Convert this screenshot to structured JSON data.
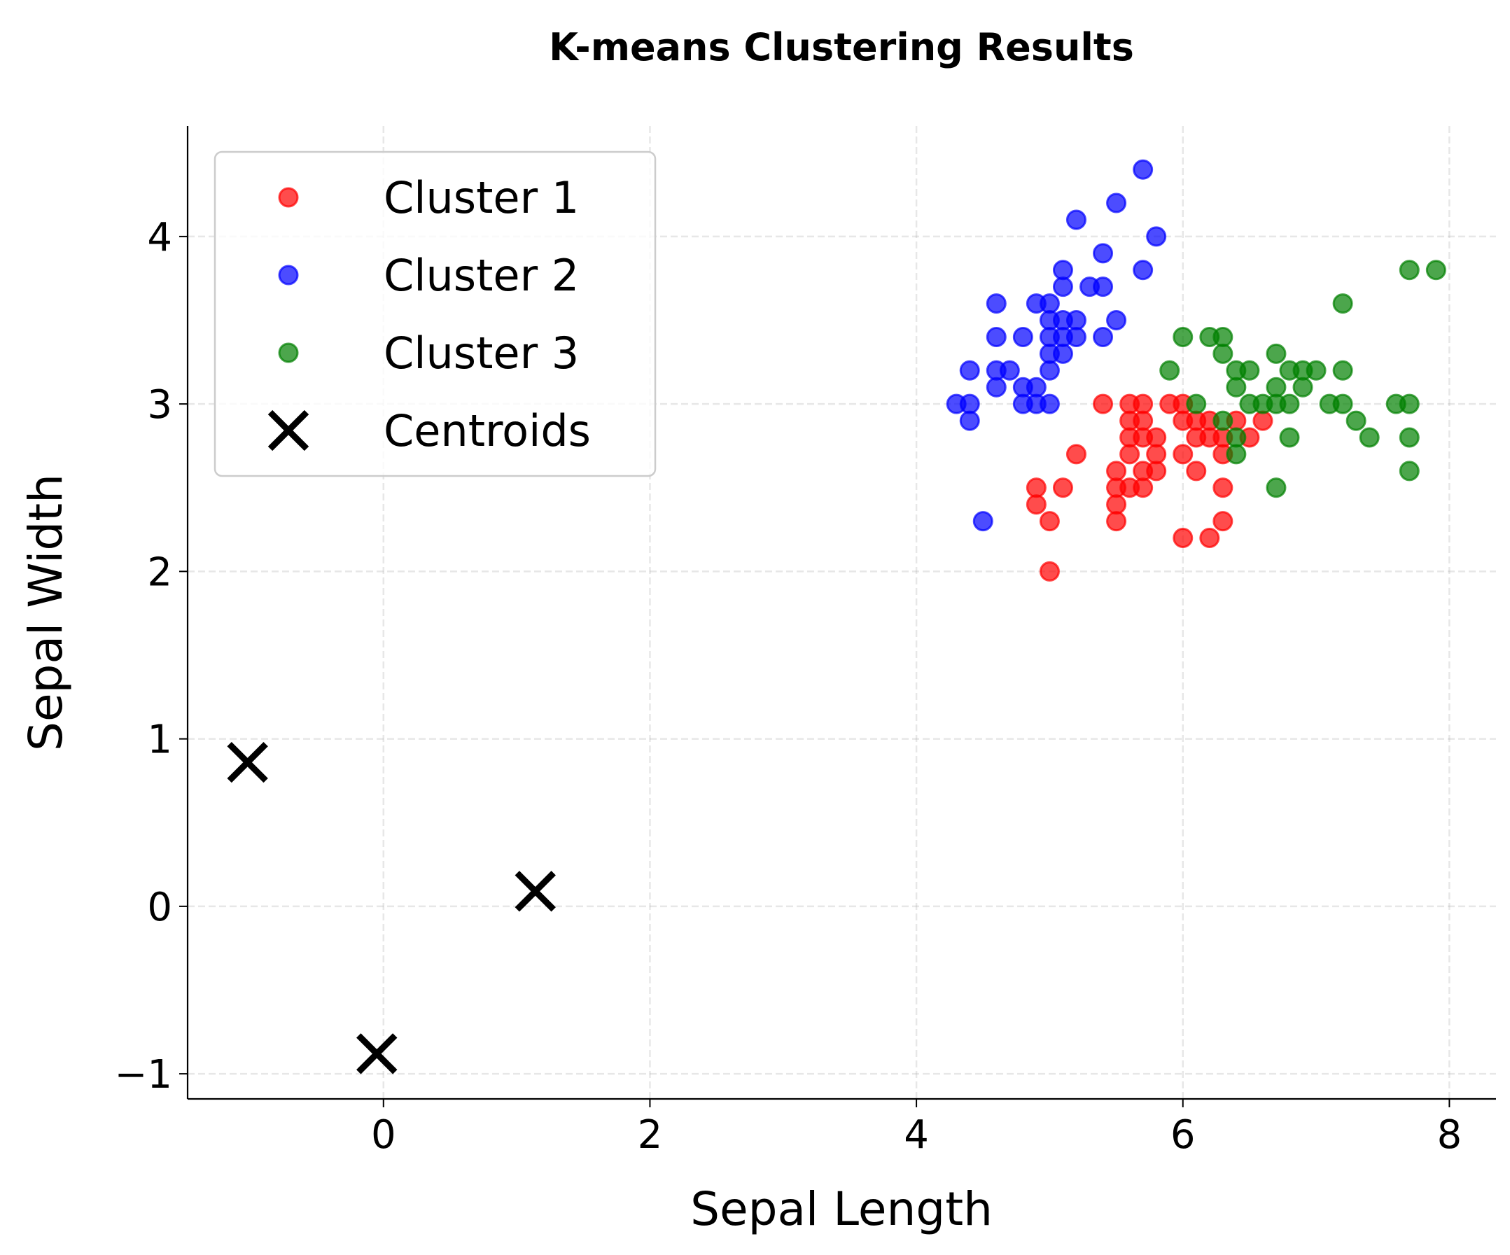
{
  "chart_data": {
    "type": "scatter",
    "title": "K-means Clustering Results",
    "xlabel": "Sepal Length",
    "ylabel": "Sepal Width",
    "xlim": [
      -1.47,
      8.35
    ],
    "ylim": [
      -1.15,
      4.66
    ],
    "xticks": [
      0,
      2,
      4,
      6,
      8
    ],
    "xtick_labels": [
      "0",
      "2",
      "4",
      "6",
      "8"
    ],
    "yticks": [
      -1,
      0,
      1,
      2,
      3,
      4
    ],
    "ytick_labels": [
      "−1",
      "0",
      "1",
      "2",
      "3",
      "4"
    ],
    "grid": true,
    "legend_placement": "top-left",
    "series": [
      {
        "name": "Cluster 1",
        "color": "#ff0000",
        "marker": "circle",
        "points": [
          [
            5.4,
            3.0
          ],
          [
            5.6,
            3.0
          ],
          [
            5.7,
            3.0
          ],
          [
            5.9,
            3.0
          ],
          [
            6.0,
            3.0
          ],
          [
            5.6,
            2.9
          ],
          [
            5.7,
            2.9
          ],
          [
            6.0,
            2.9
          ],
          [
            6.1,
            2.9
          ],
          [
            6.2,
            2.9
          ],
          [
            6.4,
            2.9
          ],
          [
            6.6,
            2.9
          ],
          [
            5.6,
            2.8
          ],
          [
            5.7,
            2.8
          ],
          [
            5.8,
            2.8
          ],
          [
            6.1,
            2.8
          ],
          [
            6.2,
            2.8
          ],
          [
            6.3,
            2.8
          ],
          [
            6.5,
            2.8
          ],
          [
            5.2,
            2.7
          ],
          [
            5.6,
            2.7
          ],
          [
            5.8,
            2.7
          ],
          [
            6.0,
            2.7
          ],
          [
            6.3,
            2.7
          ],
          [
            5.5,
            2.6
          ],
          [
            5.7,
            2.6
          ],
          [
            5.8,
            2.6
          ],
          [
            6.1,
            2.6
          ],
          [
            4.9,
            2.5
          ],
          [
            5.1,
            2.5
          ],
          [
            5.5,
            2.5
          ],
          [
            5.6,
            2.5
          ],
          [
            5.7,
            2.5
          ],
          [
            6.3,
            2.5
          ],
          [
            4.9,
            2.4
          ],
          [
            5.5,
            2.4
          ],
          [
            5.0,
            2.3
          ],
          [
            5.5,
            2.3
          ],
          [
            6.3,
            2.3
          ],
          [
            6.0,
            2.2
          ],
          [
            6.2,
            2.2
          ],
          [
            5.0,
            2.0
          ]
        ]
      },
      {
        "name": "Cluster 2",
        "color": "#0000ff",
        "marker": "circle",
        "points": [
          [
            5.7,
            4.4
          ],
          [
            5.5,
            4.2
          ],
          [
            5.2,
            4.1
          ],
          [
            5.8,
            4.0
          ],
          [
            5.4,
            3.9
          ],
          [
            5.1,
            3.8
          ],
          [
            5.7,
            3.8
          ],
          [
            5.1,
            3.7
          ],
          [
            5.3,
            3.7
          ],
          [
            5.4,
            3.7
          ],
          [
            4.6,
            3.6
          ],
          [
            4.9,
            3.6
          ],
          [
            5.0,
            3.6
          ],
          [
            5.0,
            3.5
          ],
          [
            5.1,
            3.5
          ],
          [
            5.2,
            3.5
          ],
          [
            5.5,
            3.5
          ],
          [
            4.6,
            3.4
          ],
          [
            4.8,
            3.4
          ],
          [
            5.0,
            3.4
          ],
          [
            5.1,
            3.4
          ],
          [
            5.2,
            3.4
          ],
          [
            5.4,
            3.4
          ],
          [
            5.0,
            3.3
          ],
          [
            5.1,
            3.3
          ],
          [
            4.4,
            3.2
          ],
          [
            4.6,
            3.2
          ],
          [
            4.7,
            3.2
          ],
          [
            5.0,
            3.2
          ],
          [
            4.6,
            3.1
          ],
          [
            4.8,
            3.1
          ],
          [
            4.9,
            3.1
          ],
          [
            4.3,
            3.0
          ],
          [
            4.4,
            3.0
          ],
          [
            4.8,
            3.0
          ],
          [
            4.9,
            3.0
          ],
          [
            5.0,
            3.0
          ],
          [
            4.4,
            2.9
          ],
          [
            4.5,
            2.3
          ]
        ]
      },
      {
        "name": "Cluster 3",
        "color": "#008000",
        "marker": "circle",
        "points": [
          [
            7.7,
            3.8
          ],
          [
            7.9,
            3.8
          ],
          [
            7.2,
            3.6
          ],
          [
            6.0,
            3.4
          ],
          [
            6.2,
            3.4
          ],
          [
            6.3,
            3.4
          ],
          [
            6.3,
            3.3
          ],
          [
            6.7,
            3.3
          ],
          [
            5.9,
            3.2
          ],
          [
            6.4,
            3.2
          ],
          [
            6.5,
            3.2
          ],
          [
            6.8,
            3.2
          ],
          [
            6.9,
            3.2
          ],
          [
            7.0,
            3.2
          ],
          [
            7.2,
            3.2
          ],
          [
            6.4,
            3.1
          ],
          [
            6.7,
            3.1
          ],
          [
            6.9,
            3.1
          ],
          [
            6.1,
            3.0
          ],
          [
            6.5,
            3.0
          ],
          [
            6.6,
            3.0
          ],
          [
            6.7,
            3.0
          ],
          [
            6.8,
            3.0
          ],
          [
            7.1,
            3.0
          ],
          [
            7.2,
            3.0
          ],
          [
            7.6,
            3.0
          ],
          [
            7.7,
            3.0
          ],
          [
            6.3,
            2.9
          ],
          [
            7.3,
            2.9
          ],
          [
            6.4,
            2.8
          ],
          [
            6.8,
            2.8
          ],
          [
            7.4,
            2.8
          ],
          [
            7.7,
            2.8
          ],
          [
            6.4,
            2.7
          ],
          [
            7.7,
            2.6
          ],
          [
            6.7,
            2.5
          ]
        ]
      },
      {
        "name": "Centroids",
        "color": "#000000",
        "marker": "x",
        "points": [
          [
            -1.02,
            0.86
          ],
          [
            -0.05,
            -0.88
          ],
          [
            1.14,
            0.09
          ]
        ]
      }
    ]
  }
}
